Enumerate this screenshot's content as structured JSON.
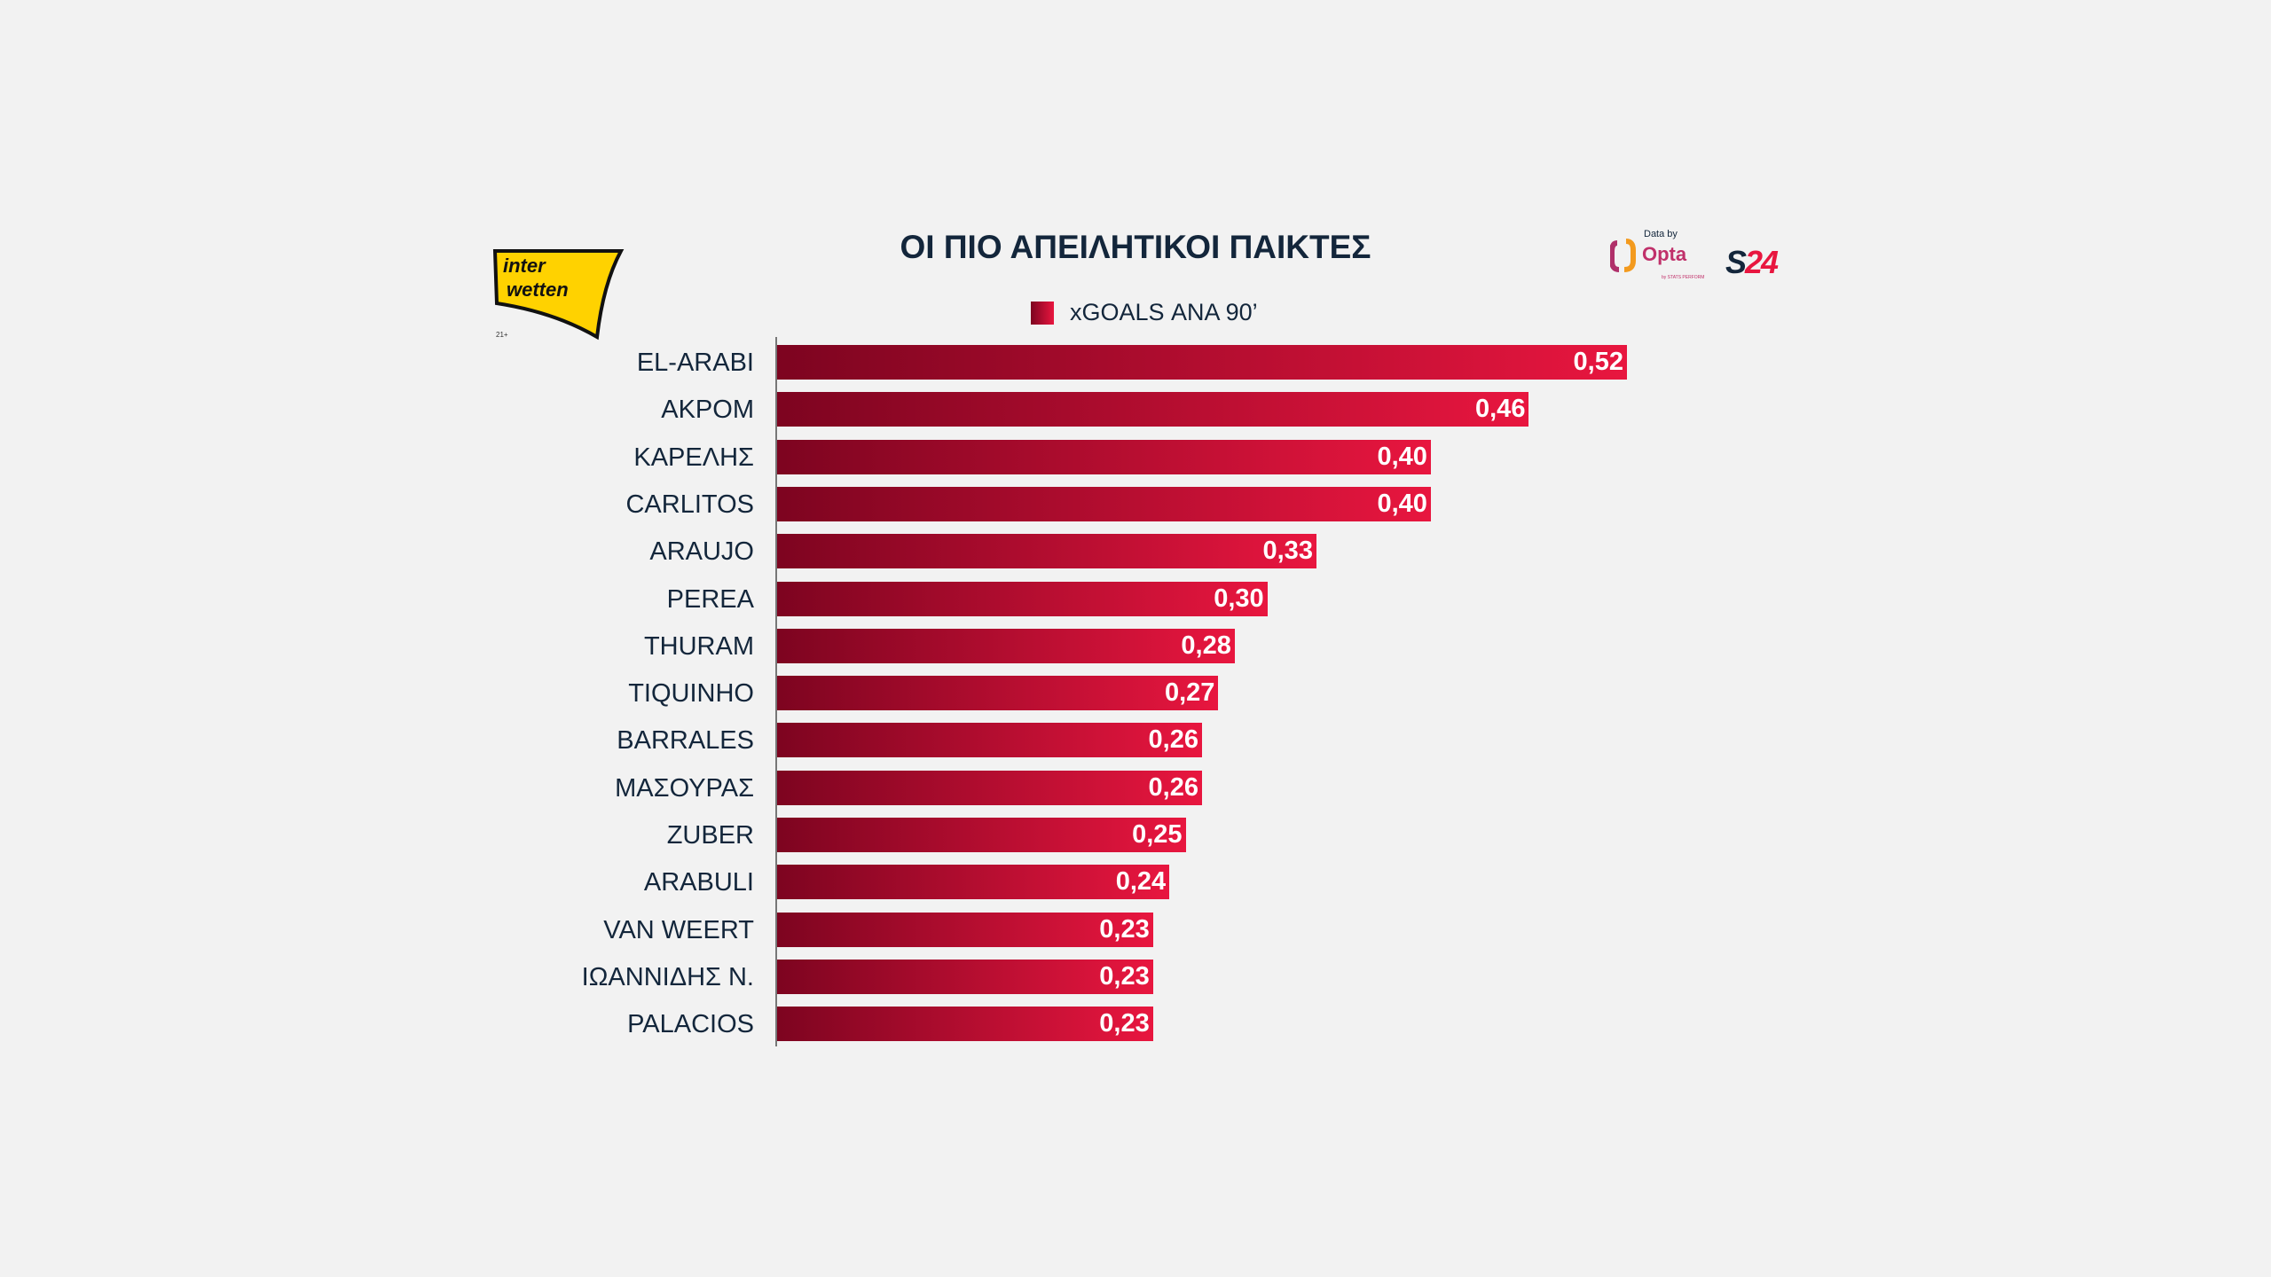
{
  "brand": {
    "interwetten_line1": "inter",
    "interwetten_line2": "wetten",
    "age": "21+",
    "data_by": "Data by",
    "opta": "Opta",
    "opta_sub": "by STATS PERFORM",
    "s24_s": "S",
    "s24_num": "24"
  },
  "colors": {
    "bar_start": "#7d0420",
    "bar_end": "#e8163f",
    "title": "#13263b"
  },
  "chart_data": {
    "type": "bar",
    "orientation": "horizontal",
    "title": "ΟΙ ΠΙΟ ΑΠΕΙΛΗΤΙΚΟΙ ΠΑΙΚΤΕΣ",
    "legend": "xGOALS ΑΝΑ 90’",
    "legend_placement": "top-center",
    "categories": [
      "EL-ARABI",
      "ΑΚΡΟΜ",
      "ΚΑΡΕΛΗΣ",
      "CARLITOS",
      "ARAUJO",
      "PEREA",
      "THURAM",
      "TIQUINHO",
      "BARRALES",
      "ΜΑΣΟΥΡΑΣ",
      "ZUBER",
      "ARABULI",
      "VAN WEERT",
      "ΙΩΑΝΝΙΔΗΣ Ν.",
      "PALACIOS"
    ],
    "values": [
      0.52,
      0.46,
      0.4,
      0.4,
      0.33,
      0.3,
      0.28,
      0.27,
      0.26,
      0.26,
      0.25,
      0.24,
      0.23,
      0.23,
      0.23
    ],
    "value_labels": [
      "0,52",
      "0,46",
      "0,40",
      "0,40",
      "0,33",
      "0,30",
      "0,28",
      "0,27",
      "0,26",
      "0,26",
      "0,25",
      "0,24",
      "0,23",
      "0,23",
      "0,23"
    ],
    "xlim": [
      0,
      0.52
    ]
  }
}
